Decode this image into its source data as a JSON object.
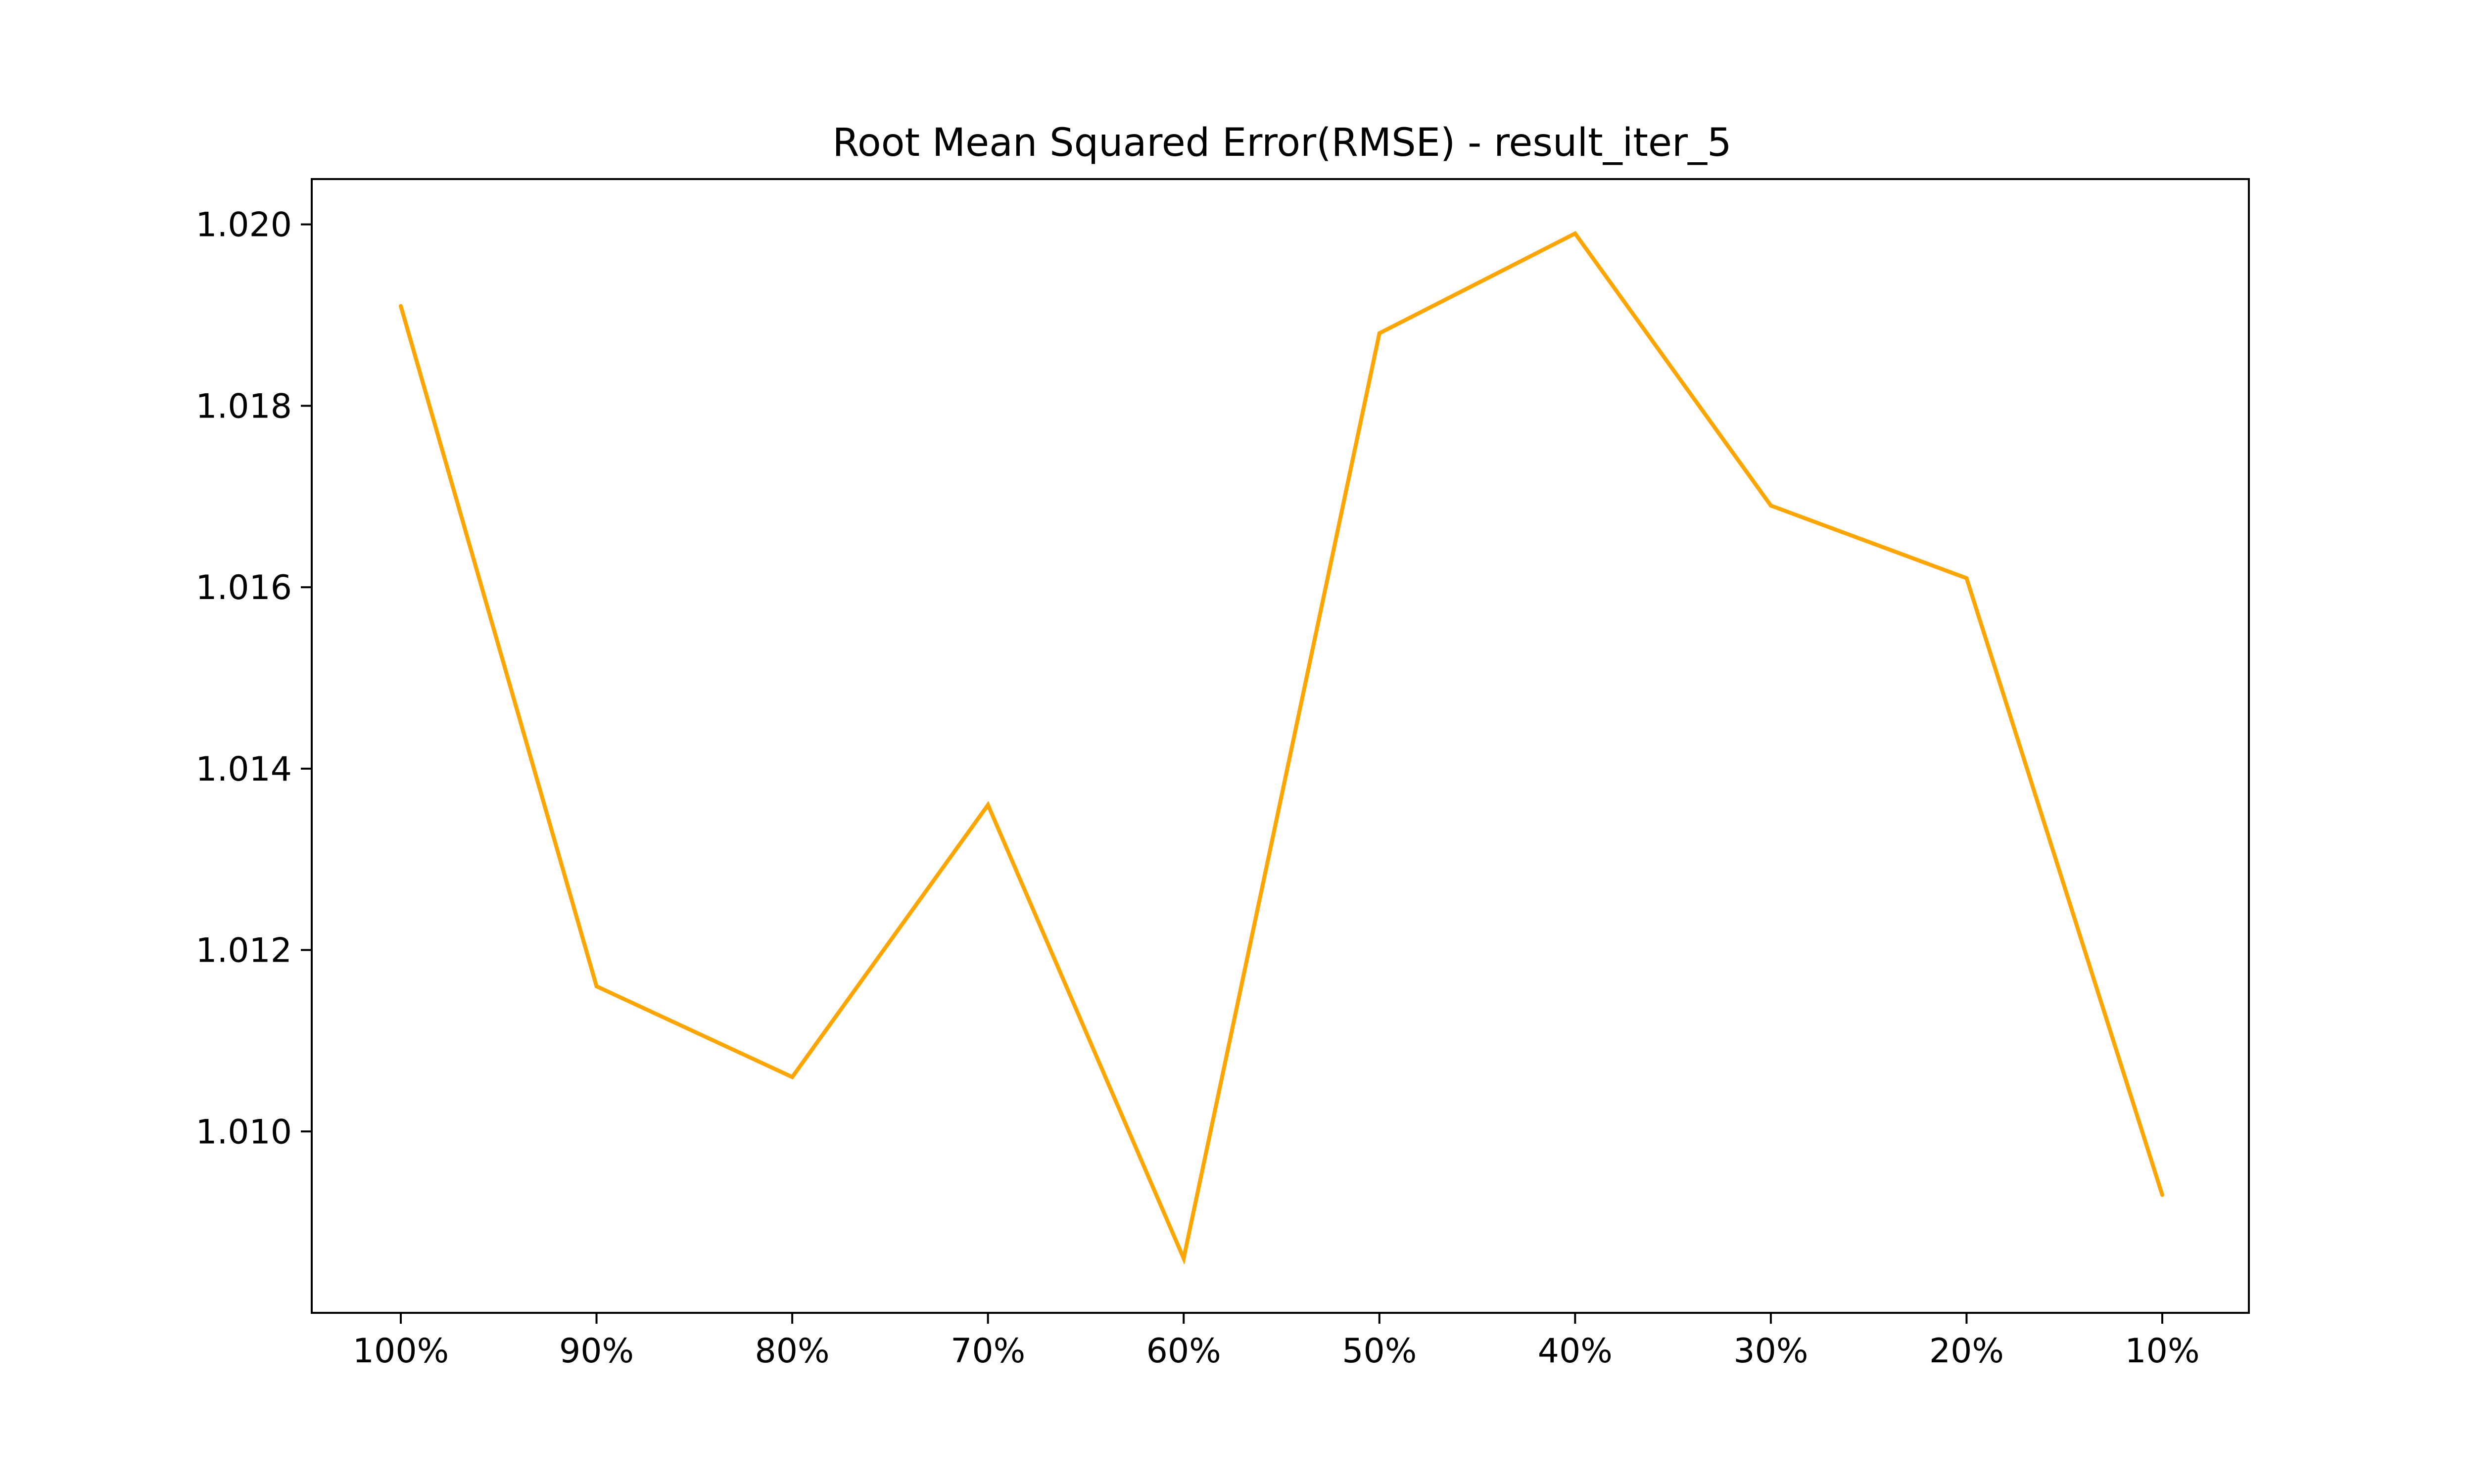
{
  "chart_data": {
    "type": "line",
    "title": "Root Mean Squared Error(RMSE) - result_iter_5",
    "xlabel": "",
    "ylabel": "",
    "categories": [
      "100%",
      "90%",
      "80%",
      "70%",
      "60%",
      "50%",
      "40%",
      "30%",
      "20%",
      "10%"
    ],
    "series": [
      {
        "color": "#FFA500",
        "values": [
          1.0191,
          1.0116,
          1.0106,
          1.0136,
          1.0086,
          1.0188,
          1.0199,
          1.0169,
          1.0161,
          1.0093
        ]
      }
    ],
    "ylim": [
      1.008,
      1.0205
    ],
    "yticks": [
      1.01,
      1.012,
      1.014,
      1.016,
      1.018,
      1.02
    ],
    "ytick_labels": [
      "1.010",
      "1.012",
      "1.014",
      "1.016",
      "1.018",
      "1.020"
    ],
    "grid": false,
    "legend": "none"
  }
}
